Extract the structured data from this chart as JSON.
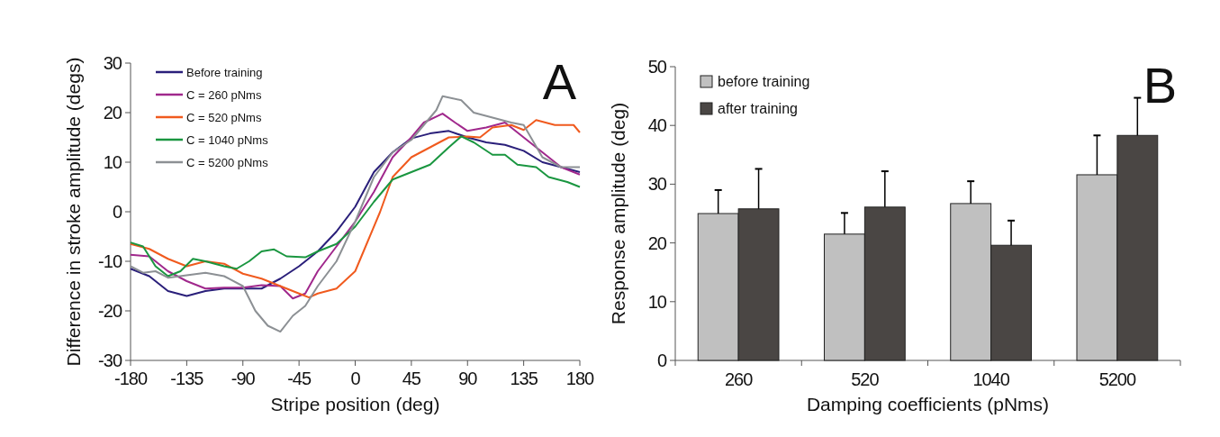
{
  "chart_data": [
    {
      "type": "line",
      "xlabel": "Stripe position (deg)",
      "ylabel": "Difference in stroke amplitude (degs)",
      "xlim": [
        -180,
        180
      ],
      "xticks": [
        -180,
        -135,
        -90,
        -45,
        0,
        45,
        90,
        135,
        180
      ],
      "ylim": [
        -30,
        30
      ],
      "yticks": [
        -30,
        -20,
        -10,
        0,
        10,
        20,
        30
      ],
      "legend": "top left",
      "annotations": [
        "A"
      ],
      "series": [
        {
          "name": "Before training",
          "color": "#2a1f7a",
          "x": [
            -180,
            -165,
            -150,
            -135,
            -120,
            -105,
            -90,
            -75,
            -60,
            -45,
            -30,
            -15,
            0,
            15,
            30,
            45,
            60,
            75,
            90,
            105,
            120,
            135,
            150,
            165,
            180
          ],
          "values": [
            -11.5,
            -13,
            -16,
            -17,
            -16,
            -15.5,
            -15.5,
            -15.5,
            -13.5,
            -11,
            -8,
            -4,
            1,
            8,
            12,
            14.8,
            15.8,
            16.3,
            15,
            14,
            13.5,
            12.3,
            10,
            9,
            8
          ]
        },
        {
          "name": "C = 260 pNms",
          "color": "#a0288c",
          "x": [
            -180,
            -165,
            -150,
            -135,
            -120,
            -105,
            -90,
            -75,
            -60,
            -50,
            -40,
            -30,
            -15,
            0,
            15,
            30,
            45,
            55,
            70,
            80,
            90,
            105,
            120,
            135,
            150,
            165,
            180
          ],
          "values": [
            -8.7,
            -9,
            -12,
            -14,
            -15.5,
            -15.3,
            -15.3,
            -14.8,
            -15,
            -17.5,
            -16.5,
            -12,
            -7,
            -2,
            4,
            11,
            15,
            18,
            19.8,
            18,
            16.3,
            17,
            18,
            15,
            12,
            9,
            7.5
          ]
        },
        {
          "name": "C = 520 pNms",
          "color": "#f05a1e",
          "x": [
            -180,
            -165,
            -150,
            -135,
            -120,
            -105,
            -90,
            -75,
            -60,
            -45,
            -37,
            -30,
            -15,
            0,
            10,
            20,
            30,
            45,
            60,
            75,
            90,
            100,
            110,
            125,
            135,
            145,
            160,
            175,
            180
          ],
          "values": [
            -6.5,
            -7.5,
            -9.5,
            -11,
            -10,
            -10.5,
            -12.5,
            -13.5,
            -15,
            -16.5,
            -17.3,
            -16.5,
            -15.5,
            -12,
            -6,
            0,
            7,
            11,
            13,
            15,
            15.2,
            15,
            17,
            17.5,
            16.5,
            18.5,
            17.5,
            17.5,
            16
          ]
        },
        {
          "name": "C = 1040 pNms",
          "color": "#1a9640",
          "x": [
            -180,
            -170,
            -160,
            -150,
            -140,
            -130,
            -120,
            -105,
            -95,
            -85,
            -75,
            -65,
            -55,
            -40,
            -30,
            -15,
            0,
            15,
            30,
            45,
            60,
            75,
            85,
            95,
            110,
            120,
            130,
            145,
            155,
            170,
            180
          ],
          "values": [
            -6.2,
            -7,
            -11,
            -13,
            -12,
            -9.5,
            -10,
            -11,
            -11.5,
            -10,
            -8,
            -7.6,
            -9,
            -9.2,
            -8,
            -6.5,
            -3,
            2,
            6.5,
            8,
            9.5,
            13,
            15.2,
            14,
            11.5,
            11.5,
            9.5,
            9,
            7,
            6,
            5
          ]
        },
        {
          "name": "C = 5200 pNms",
          "color": "#8c9094",
          "x": [
            -180,
            -170,
            -160,
            -150,
            -135,
            -120,
            -105,
            -90,
            -80,
            -70,
            -60,
            -50,
            -40,
            -30,
            -15,
            0,
            15,
            30,
            45,
            55,
            65,
            70,
            85,
            95,
            110,
            125,
            135,
            150,
            165,
            180
          ],
          "values": [
            -11,
            -12.3,
            -12,
            -13.3,
            -12.8,
            -12.3,
            -13,
            -15,
            -20,
            -23,
            -24.2,
            -21,
            -19,
            -15,
            -10,
            -2,
            7,
            12,
            14.5,
            17.5,
            20.5,
            23.3,
            22.5,
            20,
            19,
            18,
            17.5,
            11,
            9,
            9
          ]
        }
      ]
    },
    {
      "type": "bar",
      "xlabel": "Damping coefficients (pNms)",
      "ylabel": "Response amplitude (deg)",
      "categories": [
        "260",
        "520",
        "1040",
        "5200"
      ],
      "ylim": [
        0,
        50
      ],
      "yticks": [
        0,
        10,
        20,
        30,
        40,
        50
      ],
      "legend": "top left",
      "annotations": [
        "B"
      ],
      "series": [
        {
          "name": "before training",
          "color": "#c0c0c0",
          "values": [
            25,
            21.5,
            26.7,
            31.6
          ],
          "errors": [
            [
              25,
              29
            ],
            [
              21.5,
              25.1
            ],
            [
              26.7,
              30.5
            ],
            [
              31.6,
              38.3
            ]
          ]
        },
        {
          "name": "after training",
          "color": "#4a4644",
          "values": [
            25.8,
            26.1,
            19.6,
            38.3
          ],
          "errors": [
            [
              25.8,
              32.6
            ],
            [
              26.1,
              32.2
            ],
            [
              19.6,
              23.8
            ],
            [
              38.3,
              44.7
            ]
          ]
        }
      ]
    }
  ]
}
